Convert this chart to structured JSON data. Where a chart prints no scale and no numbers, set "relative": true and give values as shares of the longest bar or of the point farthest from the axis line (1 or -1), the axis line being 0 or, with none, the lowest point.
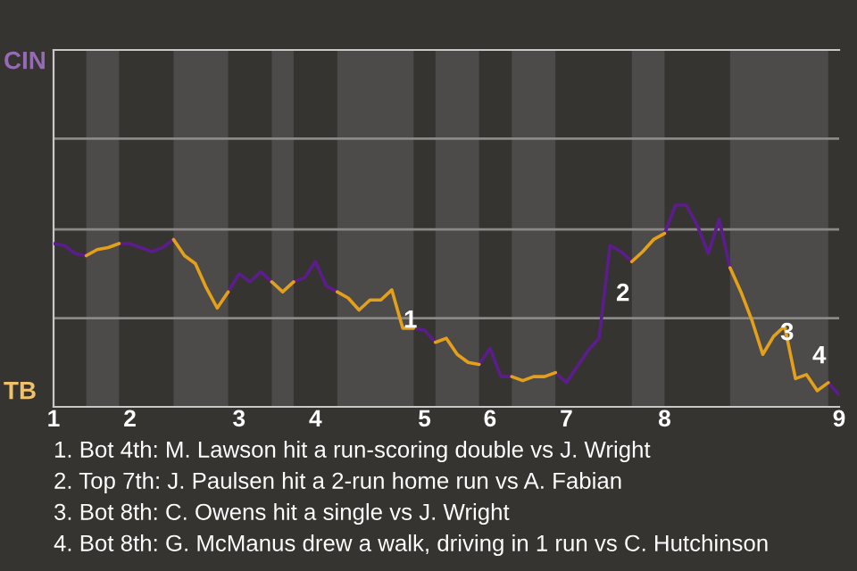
{
  "chart_data": {
    "type": "line",
    "relative": true,
    "categories": [
      "1",
      null,
      null,
      null,
      null,
      null,
      null,
      "2",
      null,
      null,
      null,
      null,
      null,
      null,
      null,
      null,
      null,
      "3",
      null,
      null,
      null,
      null,
      null,
      null,
      "4",
      null,
      null,
      null,
      null,
      null,
      null,
      null,
      null,
      null,
      "5",
      null,
      null,
      null,
      null,
      null,
      "6",
      null,
      null,
      null,
      null,
      null,
      null,
      "7",
      null,
      null,
      null,
      null,
      null,
      null,
      null,
      null,
      "8",
      null,
      null,
      null,
      null,
      null,
      null,
      null,
      null,
      null,
      null,
      null,
      null,
      null,
      null,
      null,
      "9"
    ],
    "ref_lines": [
      {
        "axis": "y",
        "value": 0.44,
        "color": "#8a8987"
      },
      {
        "axis": "y",
        "value": 0.88,
        "color": "#8a8987"
      },
      {
        "axis": "y",
        "value": 1.33,
        "color": "#8a8987"
      }
    ],
    "series": [
      {
        "color": "#5c1d8c",
        "values": [
          0.81,
          0.8,
          0.76,
          0.75,
          null,
          null,
          0.81,
          0.81,
          0.79,
          0.77,
          0.79,
          0.83,
          null,
          null,
          null,
          null,
          0.57,
          0.66,
          0.62,
          0.67,
          0.62,
          null,
          0.62,
          0.64,
          0.72,
          0.6,
          0.57,
          null,
          null,
          null,
          null,
          null,
          null,
          0.39,
          0.38,
          0.32,
          null,
          null,
          null,
          0.21,
          0.29,
          0.15,
          0.15,
          null,
          null,
          null,
          0.17,
          0.12,
          0.2,
          0.28,
          0.34,
          0.8,
          0.77,
          0.72,
          null,
          null,
          0.86,
          1,
          1,
          0.9,
          0.76,
          0.93,
          0.69,
          null,
          null,
          null,
          null,
          null,
          null,
          null,
          null,
          0.12,
          0.06
        ]
      },
      {
        "color": "#e5a01a",
        "values": [
          null,
          null,
          null,
          0.75,
          0.78,
          0.79,
          0.81,
          null,
          null,
          null,
          null,
          0.83,
          0.75,
          0.71,
          0.59,
          0.49,
          0.57,
          null,
          null,
          null,
          0.62,
          0.57,
          0.62,
          null,
          null,
          null,
          0.57,
          0.54,
          0.48,
          0.53,
          0.53,
          0.58,
          0.39,
          0.39,
          null,
          0.32,
          0.34,
          0.26,
          0.22,
          0.21,
          null,
          null,
          0.15,
          0.13,
          0.15,
          0.15,
          0.17,
          null,
          null,
          null,
          null,
          null,
          null,
          0.72,
          0.77,
          0.83,
          0.86,
          null,
          null,
          null,
          null,
          null,
          0.69,
          0.57,
          0.43,
          0.26,
          0.35,
          0.4,
          0.14,
          0.16,
          0.08,
          0.12,
          null
        ]
      }
    ],
    "annotations": [
      "CIN",
      "TB",
      "1",
      "2",
      "3",
      "4",
      "1. Bot 4th: M. Lawson hit a run-scoring double vs J. Wright",
      "2. Top 7th: J. Paulsen hit a 2-run home run vs A. Fabian",
      "3. Bot 8th: C. Owens hit a single vs J. Wright",
      "4. Bot 8th: G. McManus drew a walk, driving in 1 run vs C. Hutchinson"
    ]
  }
}
